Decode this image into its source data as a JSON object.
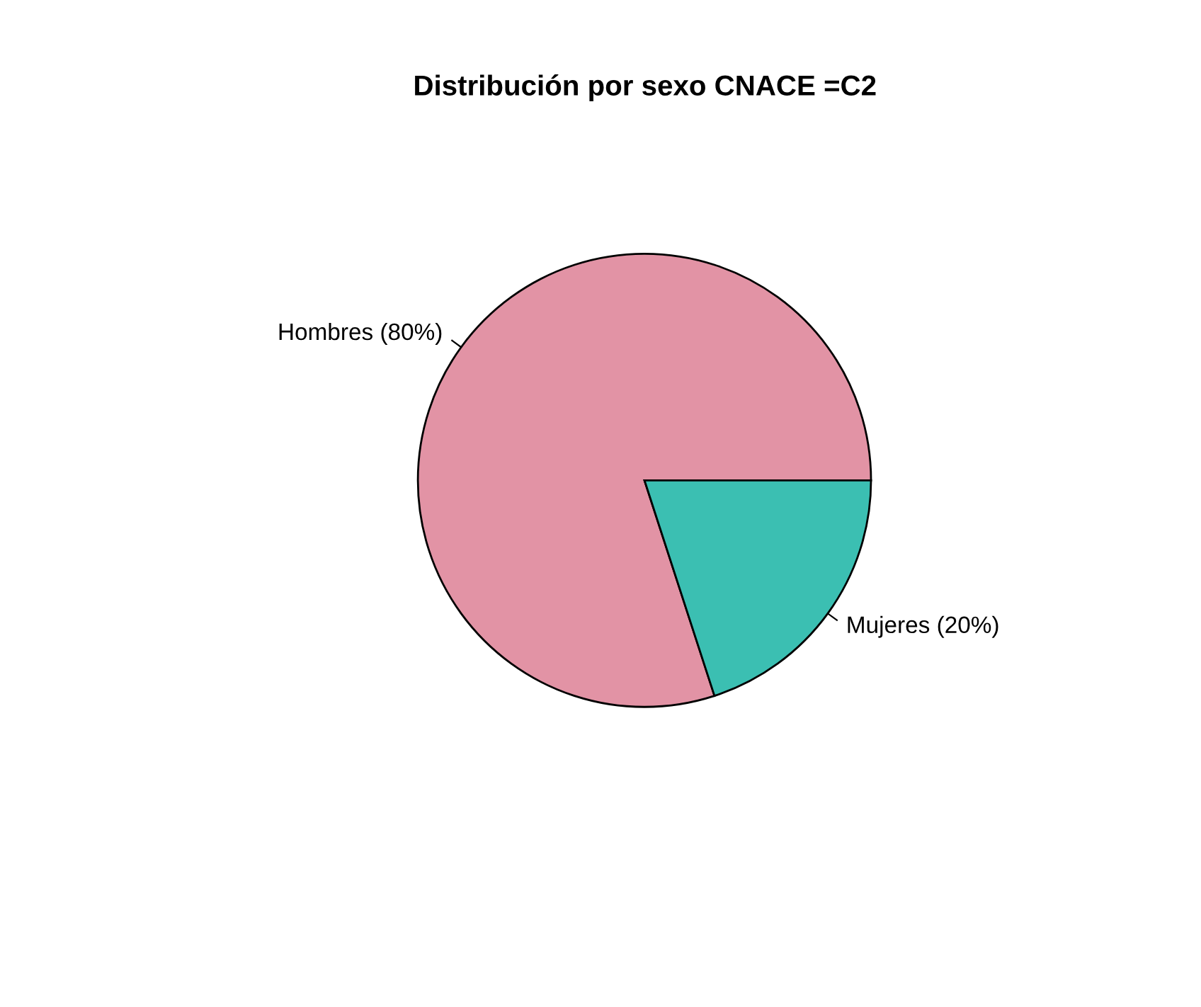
{
  "chart_data": {
    "type": "pie",
    "title": "Distribución por sexo CNACE =C2",
    "categories": [
      "Hombres (80%)",
      "Mujeres (20%)"
    ],
    "values": [
      80,
      20
    ],
    "colors": [
      "#e293a5",
      "#3bbfb2"
    ]
  }
}
